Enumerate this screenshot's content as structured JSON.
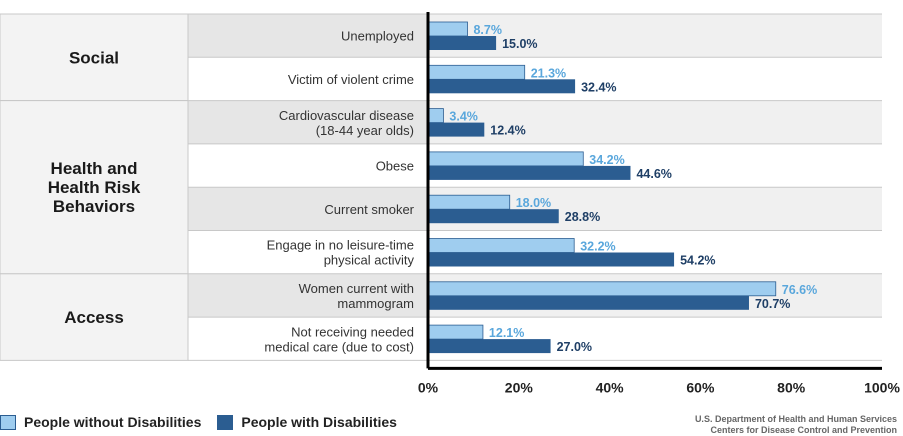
{
  "chart_data": {
    "type": "bar",
    "orientation": "horizontal",
    "title": "",
    "xlabel": "",
    "ylabel": "",
    "xlim": [
      0,
      100
    ],
    "x_ticks": [
      "0%",
      "20%",
      "40%",
      "60%",
      "80%",
      "100%"
    ],
    "groups": [
      {
        "name": "Social",
        "categories": [
          "Unemployed",
          "Victim of violent crime"
        ]
      },
      {
        "name": "Health and\nHealth Risk\nBehaviors",
        "categories": [
          "Cardiovascular disease\n(18-44 year olds)",
          "Obese",
          "Current smoker",
          "Engage in no leisure-time\nphysical activity"
        ]
      },
      {
        "name": "Access",
        "categories": [
          "Women current with\nmammogram",
          "Not receiving needed\nmedical care (due to cost)"
        ]
      }
    ],
    "categories": [
      "Unemployed",
      "Victim of violent crime",
      "Cardiovascular disease\n(18-44 year olds)",
      "Obese",
      "Current smoker",
      "Engage in no leisure-time\nphysical activity",
      "Women current with\nmammogram",
      "Not receiving needed\nmedical care (due to cost)"
    ],
    "series": [
      {
        "name": "People without Disabilities",
        "color": "#9fcdef",
        "values": [
          8.7,
          21.3,
          3.4,
          34.2,
          18.0,
          32.2,
          76.6,
          12.1
        ],
        "labels": [
          "8.7%",
          "21.3%",
          "3.4%",
          "34.2%",
          "18.0%",
          "32.2%",
          "76.6%",
          "12.1%"
        ]
      },
      {
        "name": "People with Disabilities",
        "color": "#2b5d91",
        "values": [
          15.0,
          32.4,
          12.4,
          44.6,
          28.8,
          54.2,
          70.7,
          27.0
        ],
        "labels": [
          "15.0%",
          "32.4%",
          "12.4%",
          "44.6%",
          "28.8%",
          "54.2%",
          "70.7%",
          "27.0%"
        ]
      }
    ],
    "grid": false,
    "legend_position": "bottom-left"
  },
  "source": {
    "line1": "U.S. Department of Health and Human Services",
    "line2": "Centers for Disease Control and Prevention"
  }
}
